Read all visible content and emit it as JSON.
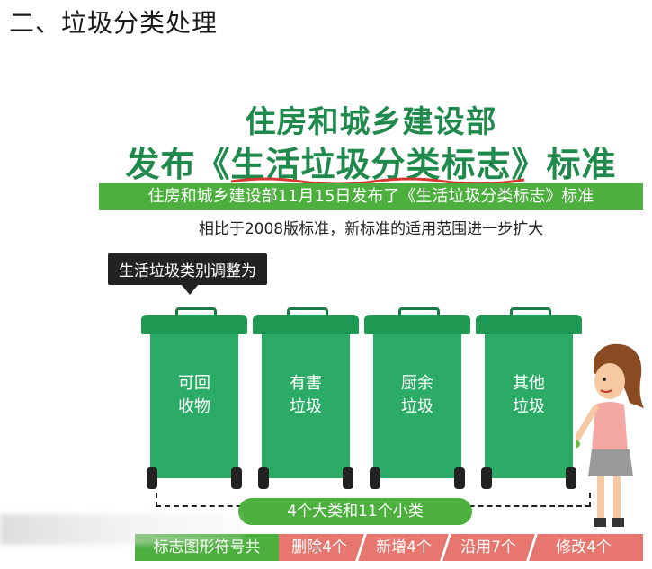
{
  "section": {
    "title": "二、垃圾分类处理"
  },
  "poster": {
    "headline_line1": "住房和城乡建设部",
    "headline_prefix": "发布《",
    "headline_standard": "生活垃圾分类标志",
    "headline_suffix": "》标准",
    "banner": "住房和城乡建设部11月15日发布了《生活垃圾分类标志》标准",
    "comparison": "相比于2008版标准，新标准的适用范围进一步扩大",
    "callout": "生活垃圾类别调整为",
    "bins": [
      {
        "line1": "可回",
        "line2": "收物"
      },
      {
        "line1": "有害",
        "line2": "垃圾"
      },
      {
        "line1": "厨余",
        "line2": "垃圾"
      },
      {
        "line1": "其他",
        "line2": "垃圾"
      }
    ],
    "summary": "4个大类和11个小类",
    "stats": [
      {
        "label": "标志图形符号共"
      },
      {
        "label": "删除4个"
      },
      {
        "label": "新增4个"
      },
      {
        "label": "沿用7个"
      },
      {
        "label": "修改4个"
      }
    ]
  },
  "colors": {
    "brand_green": "#1f8a4c",
    "bin_green": "#2bab66",
    "banner_green": "#4caf3e",
    "stats_red": "#e7766f",
    "underline_red": "#d6372e"
  },
  "icons": {
    "bin": "trash-bin-icon",
    "person": "woman-illustration",
    "bubble": "speech-bubble-icon"
  }
}
